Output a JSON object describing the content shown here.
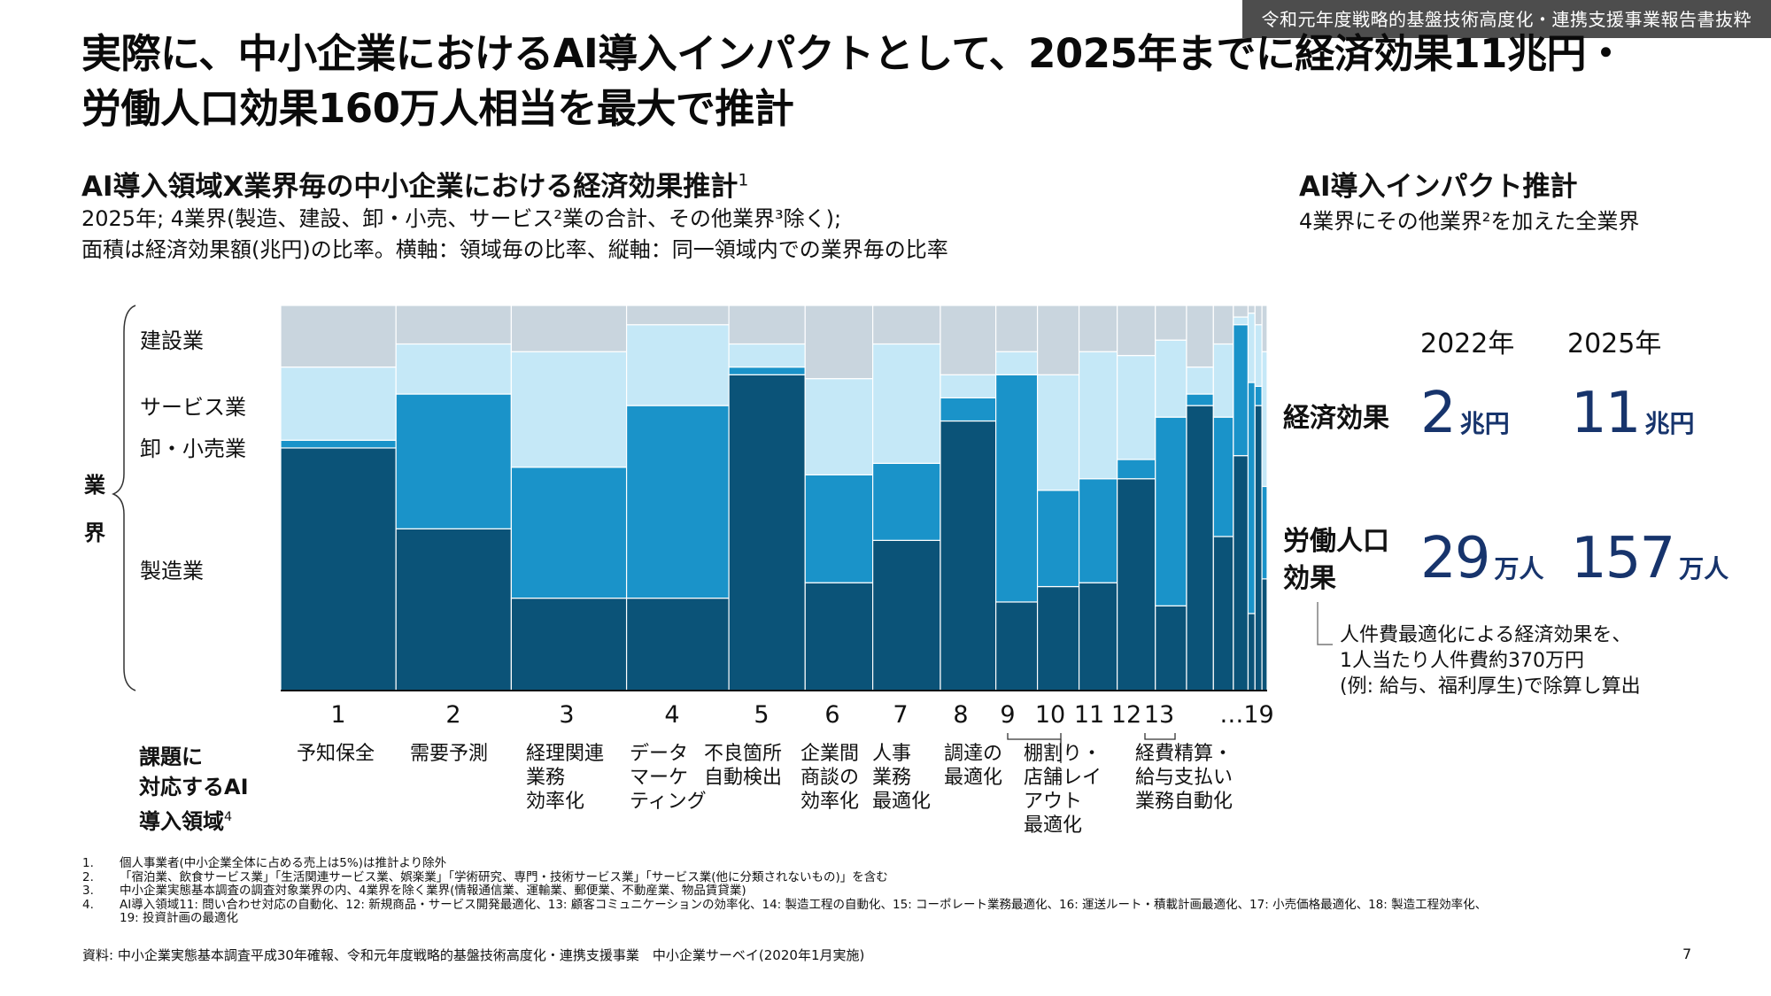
{
  "header_tag": "令和元年度戦略的基盤技術高度化・連携支援事業報告書抜粋",
  "main_title": {
    "line1": "実際に、中小企業におけるAI導入インパクトとして、2025年までに経済効果11兆円・",
    "line2": "労働人口効果160万人相当を最大で推計"
  },
  "left_panel": {
    "title": "AI導入領域X業界毎の中小企業における経済効果推計",
    "title_sup": "1",
    "desc_line1": "2025年; 4業界(製造、建設、卸・小売、サービス²業の合計、その他業界³除く);",
    "desc_line2": "面積は経済効果額(兆円)の比率。横軸：領域毎の比率、縦軸：同一領域内での業界毎の比率",
    "industry_axis": [
      "業",
      "界"
    ],
    "industry_labels": [
      "建設業",
      "サービス業",
      "卸・小売業",
      "製造業"
    ],
    "x_axis_head": {
      "line1": "課題に",
      "line2": "対応するAI",
      "line3": "導入領域",
      "sup": "4"
    },
    "x_numbers": [
      "1",
      "2",
      "3",
      "4",
      "5",
      "6",
      "7",
      "8",
      "9",
      "10",
      "11",
      "12",
      "13",
      "…19"
    ],
    "areas": [
      "予知保全",
      "需要予測",
      "経理関連\n業務\n効率化",
      "データ\nマーケ\nティング",
      "不良箇所\n自動検出",
      "企業間\n商談の\n効率化",
      "人事\n業務\n最適化",
      "調達の\n最適化",
      "棚割り・\n店舗レイ\nアウト\n最適化",
      "経費精算・\n給与支払い\n業務自動化"
    ]
  },
  "right_panel": {
    "title": "AI導入インパクト推計",
    "desc": "4業界にその他業界²を加えた全業界",
    "years": [
      "2022年",
      "2025年"
    ],
    "rows": [
      {
        "label_line1": "経済効果",
        "label_line2": "",
        "v2022": "2",
        "v2025": "11",
        "unit": "兆円"
      },
      {
        "label_line1": "労働人口",
        "label_line2": "効果",
        "v2022": "29",
        "v2025": "157",
        "unit": "万人"
      }
    ],
    "note": "人件費最適化による経済効果を、\n1人当たり人件費約370万円\n(例: 給与、福利厚生)で除算し算出"
  },
  "footnotes": [
    {
      "num": "1.",
      "text": "個人事業者(中小企業全体に占める売上は5%)は推計より除外"
    },
    {
      "num": "2.",
      "text": "「宿泊業、飲食サービス業」「生活関連サービス業、娯楽業」「学術研究、専門・技術サービス業」「サービス業(他に分類されないもの)」を含む"
    },
    {
      "num": "3.",
      "text": "中小企業実態基本調査の調査対象業界の内、4業界を除く業界(情報通信業、運輸業、郵便業、不動産業、物品賃貸業)"
    },
    {
      "num": "4.",
      "text": "AI導入領域11: 問い合わせ対応の自動化、12: 新規商品・サービス開発最適化、13: 顧客コミュニケーションの効率化、14: 製造工程の自動化、15: コーポレート業務最適化、16: 運送ルート・積載計画最適化、17: 小売価格最適化、18: 製造工程効率化、"
    },
    {
      "num": "",
      "text": "19: 投資計画の最適化"
    }
  ],
  "source": "資料: 中小企業実態基本調査平成30年確報、令和元年度戦略的基盤技術高度化・連携支援事業　中小企業サーベイ(2020年1月実施)",
  "page_number": "7",
  "colors": {
    "製造業": "#0b5378",
    "卸・小売業": "#1a93c9",
    "サービス業": "#c5e8f7",
    "建設業": "#c9d5de",
    "big_number": "#17346c"
  },
  "chart_data": {
    "type": "marimekko",
    "title": "AI導入領域X業界毎の中小企業における経済効果推計",
    "x_label": "課題に対応するAI導入領域",
    "y_label": "業界",
    "series_order_bottom_to_top": [
      "製造業",
      "卸・小売業",
      "サービス業",
      "建設業"
    ],
    "columns": [
      {
        "area": "1",
        "width_pct": 13.3,
        "製造業": 63,
        "卸・小売業": 2,
        "サービス業": 19,
        "建設業": 16
      },
      {
        "area": "2",
        "width_pct": 13.3,
        "製造業": 42,
        "卸・小売業": 35,
        "サービス業": 13,
        "建設業": 10
      },
      {
        "area": "3",
        "width_pct": 13.3,
        "製造業": 24,
        "卸・小売業": 34,
        "サービス業": 30,
        "建設業": 12
      },
      {
        "area": "4",
        "width_pct": 11.8,
        "製造業": 24,
        "卸・小売業": 50,
        "サービス業": 21,
        "建設業": 5
      },
      {
        "area": "5",
        "width_pct": 8.8,
        "製造業": 82,
        "卸・小売業": 2,
        "サービス業": 6,
        "建設業": 10
      },
      {
        "area": "6",
        "width_pct": 7.8,
        "製造業": 28,
        "卸・小売業": 28,
        "サービス業": 25,
        "建設業": 19
      },
      {
        "area": "7",
        "width_pct": 7.8,
        "製造業": 39,
        "卸・小売業": 20,
        "サービス業": 31,
        "建設業": 10
      },
      {
        "area": "8",
        "width_pct": 6.4,
        "製造業": 70,
        "卸・小売業": 6,
        "サービス業": 6,
        "建設業": 18
      },
      {
        "area": "9",
        "width_pct": 4.8,
        "製造業": 23,
        "卸・小売業": 59,
        "サービス業": 6,
        "建設業": 12
      },
      {
        "area": "10",
        "width_pct": 4.8,
        "製造業": 27,
        "卸・小売業": 25,
        "サービス業": 30,
        "建設業": 18
      },
      {
        "area": "11",
        "width_pct": 4.4,
        "製造業": 28,
        "卸・小売業": 27,
        "サービス業": 33,
        "建設業": 12
      },
      {
        "area": "12",
        "width_pct": 4.4,
        "製造業": 55,
        "卸・小売業": 5,
        "サービス業": 27,
        "建設業": 13
      },
      {
        "area": "13",
        "width_pct": 3.6,
        "製造業": 22,
        "卸・小売業": 49,
        "サービス業": 20,
        "建設業": 9
      },
      {
        "area": "14",
        "width_pct": 3.1,
        "製造業": 74,
        "卸・小売業": 3,
        "サービス業": 7,
        "建設業": 16
      },
      {
        "area": "15",
        "width_pct": 2.3,
        "製造業": 40,
        "卸・小売業": 31,
        "サービス業": 19,
        "建設業": 10
      },
      {
        "area": "16",
        "width_pct": 1.7,
        "製造業": 61,
        "卸・小売業": 34,
        "サービス業": 2,
        "建設業": 3
      },
      {
        "area": "17",
        "width_pct": 0.8,
        "製造業": 20,
        "卸・小売業": 60,
        "サービス業": 18,
        "建設業": 2
      },
      {
        "area": "18",
        "width_pct": 0.8,
        "製造業": 74,
        "卸・小売業": 5,
        "サービス業": 16,
        "建設業": 5
      },
      {
        "area": "19",
        "width_pct": 0.6,
        "製造業": 29,
        "卸・小売業": 24,
        "サービス業": 35,
        "建設業": 12
      }
    ]
  }
}
